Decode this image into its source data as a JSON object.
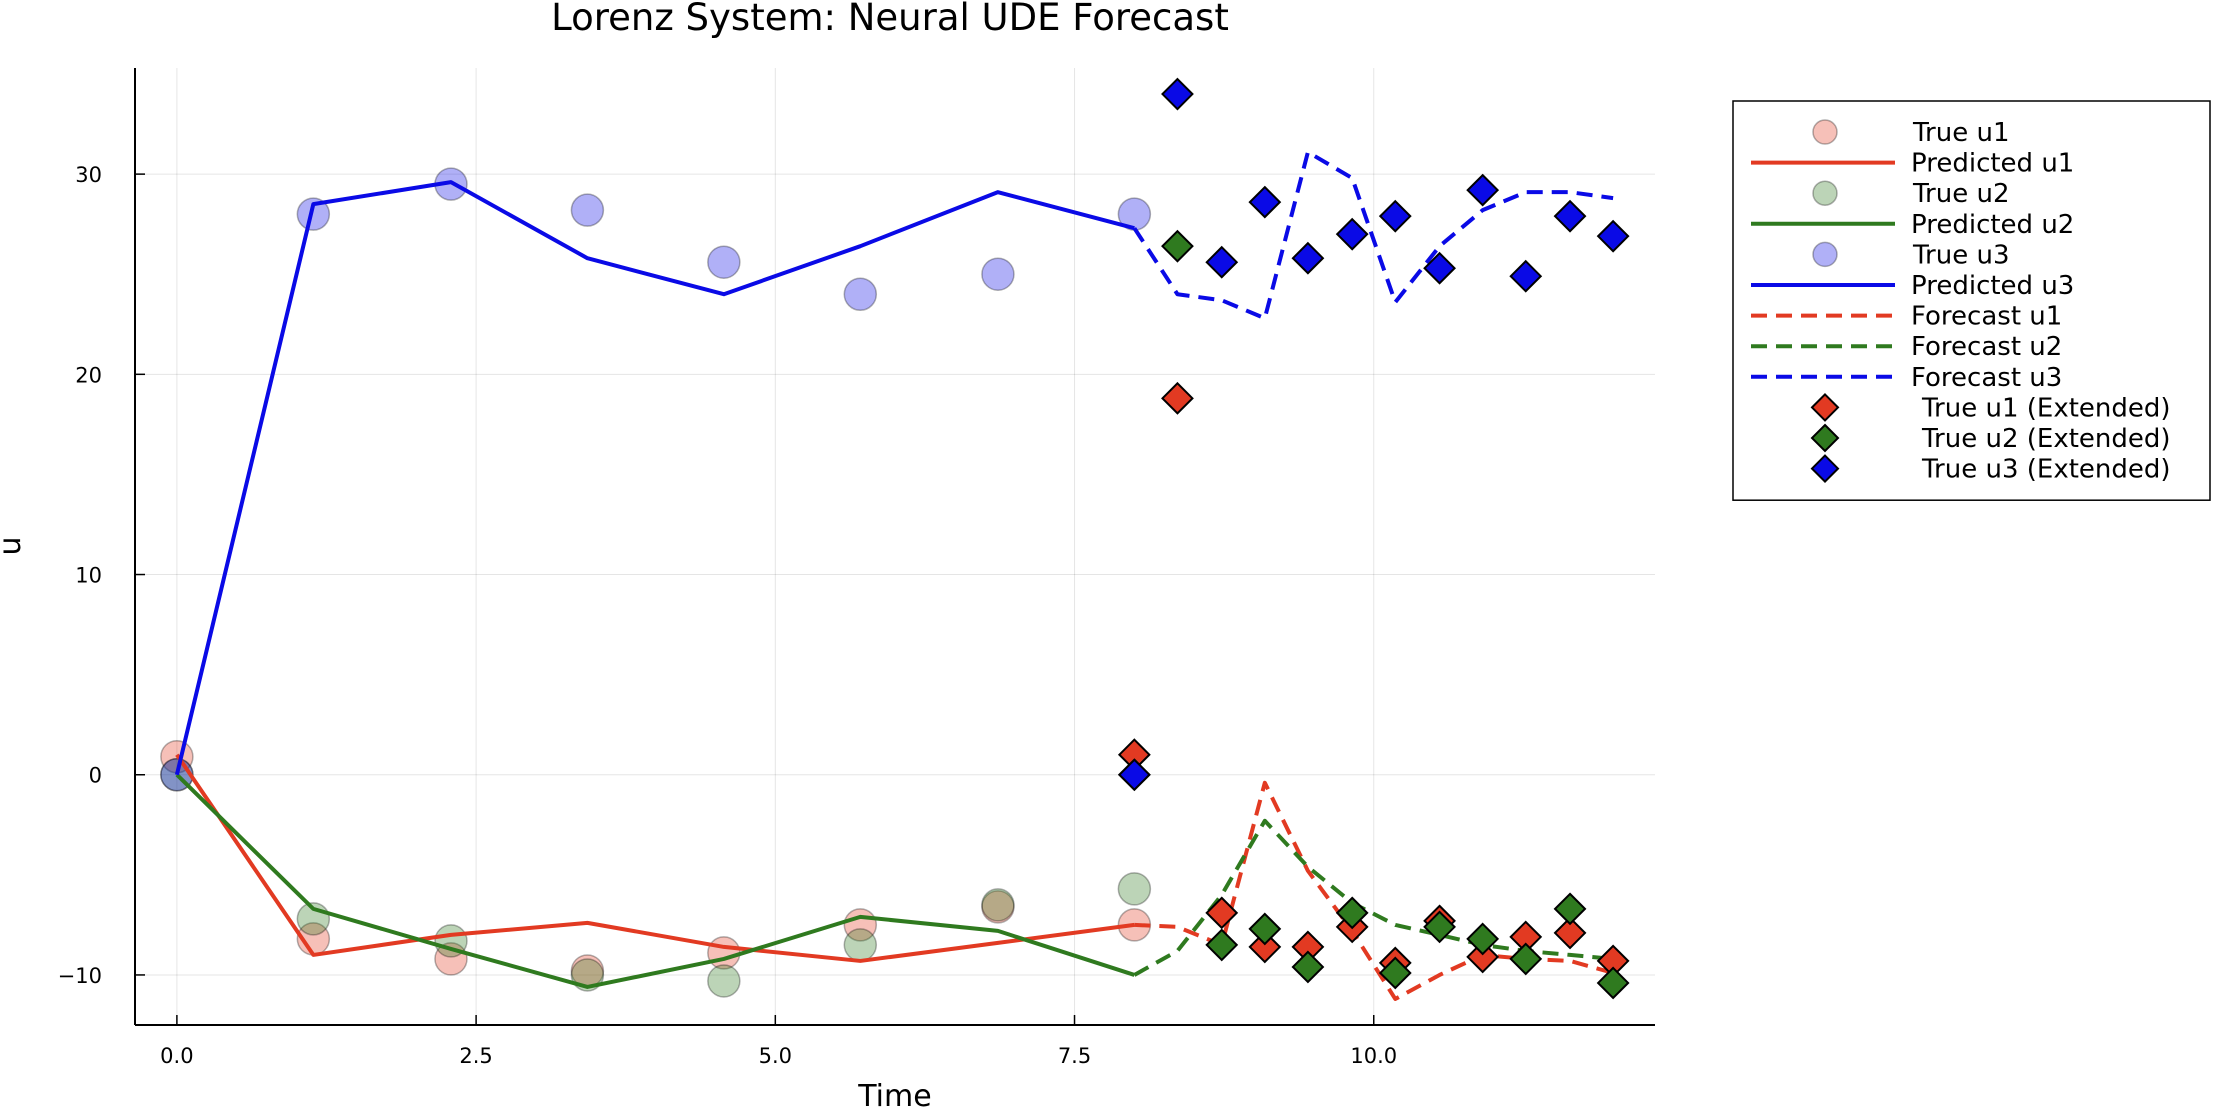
{
  "chart_data": {
    "type": "line+scatter",
    "title": "Lorenz System: Neural UDE Forecast",
    "xlabel": "Time",
    "ylabel": "u",
    "xlim": [
      -0.35,
      12.35
    ],
    "ylim": [
      -12.5,
      35.3
    ],
    "xticks": [
      0.0,
      2.5,
      5.0,
      7.5,
      10.0
    ],
    "xtick_labels": [
      "0.0",
      "2.5",
      "5.0",
      "7.5",
      "10.0"
    ],
    "yticks": [
      -10,
      0,
      10,
      20,
      30
    ],
    "ytick_labels": [
      "−10",
      "0",
      "10",
      "20",
      "30"
    ],
    "grid": true,
    "legend_position": "outer top-right",
    "colors": {
      "red": "#e23a22",
      "green": "#2f7a1f",
      "blue": "#0a0ae6"
    },
    "series": [
      {
        "name": "True u1",
        "kind": "scatter-circle",
        "color": "#e23a22",
        "x": [
          0,
          1.14,
          2.29,
          3.43,
          4.57,
          5.71,
          6.86,
          8.0
        ],
        "y": [
          0.9,
          -8.2,
          -9.2,
          -9.8,
          -8.9,
          -7.5,
          -6.6,
          -7.5
        ]
      },
      {
        "name": "Predicted u1",
        "kind": "line",
        "color": "#e23a22",
        "x": [
          0,
          1.14,
          2.29,
          3.43,
          4.57,
          5.71,
          6.86,
          8.0
        ],
        "y": [
          1.0,
          -9.0,
          -8.0,
          -7.4,
          -8.6,
          -9.3,
          -8.4,
          -7.5
        ]
      },
      {
        "name": "True u2",
        "kind": "scatter-circle",
        "color": "#2f7a1f",
        "x": [
          0,
          1.14,
          2.29,
          3.43,
          4.57,
          5.71,
          6.86,
          8.0
        ],
        "y": [
          0.0,
          -7.2,
          -8.3,
          -10.0,
          -10.3,
          -8.5,
          -6.5,
          -5.7
        ]
      },
      {
        "name": "Predicted u2",
        "kind": "line",
        "color": "#2f7a1f",
        "x": [
          0,
          1.14,
          2.29,
          3.43,
          4.57,
          5.71,
          6.86,
          8.0
        ],
        "y": [
          0.0,
          -6.7,
          -8.7,
          -10.6,
          -9.2,
          -7.1,
          -7.8,
          -10.0
        ]
      },
      {
        "name": "True u3",
        "kind": "scatter-circle",
        "color": "#0a0ae6",
        "x": [
          0,
          1.14,
          2.29,
          3.43,
          4.57,
          5.71,
          6.86,
          8.0
        ],
        "y": [
          0.0,
          28.0,
          29.5,
          28.2,
          25.6,
          24.0,
          25.0,
          28.0
        ]
      },
      {
        "name": "Predicted u3",
        "kind": "line",
        "color": "#0a0ae6",
        "x": [
          0,
          1.14,
          2.29,
          3.43,
          4.57,
          5.71,
          6.86,
          8.0
        ],
        "y": [
          0.0,
          28.5,
          29.6,
          25.8,
          24.0,
          26.4,
          29.1,
          27.3
        ]
      },
      {
        "name": "Forecast u1",
        "kind": "dashed-line",
        "color": "#e23a22",
        "x": [
          8.0,
          8.36,
          8.73,
          9.09,
          9.45,
          9.82,
          10.18,
          10.55,
          10.91,
          11.27,
          11.64,
          12.0
        ],
        "y": [
          -7.5,
          -7.6,
          -8.5,
          -0.4,
          -4.8,
          -7.8,
          -11.2,
          -10.0,
          -9.0,
          -9.2,
          -9.3,
          -9.9
        ]
      },
      {
        "name": "Forecast u2",
        "kind": "dashed-line",
        "color": "#2f7a1f",
        "x": [
          8.0,
          8.36,
          8.73,
          9.09,
          9.45,
          9.82,
          10.18,
          10.55,
          10.91,
          11.27,
          11.64,
          12.0
        ],
        "y": [
          -10.0,
          -8.8,
          -6.0,
          -2.3,
          -4.6,
          -6.4,
          -7.5,
          -8.0,
          -8.5,
          -8.8,
          -9.0,
          -9.2
        ]
      },
      {
        "name": "Forecast u3",
        "kind": "dashed-line",
        "color": "#0a0ae6",
        "x": [
          8.0,
          8.36,
          8.73,
          9.09,
          9.45,
          9.82,
          10.18,
          10.55,
          10.91,
          11.27,
          11.64,
          12.0
        ],
        "y": [
          27.3,
          24.0,
          23.7,
          22.8,
          31.1,
          29.8,
          23.6,
          26.4,
          28.2,
          29.1,
          29.1,
          28.8
        ]
      },
      {
        "name": "True u1 (Extended)",
        "kind": "scatter-diamond",
        "color": "#e23a22",
        "x": [
          8.0,
          8.36,
          8.73,
          9.09,
          9.45,
          9.82,
          10.18,
          10.55,
          10.91,
          11.27,
          11.64,
          12.0
        ],
        "y": [
          1.0,
          18.8,
          -6.9,
          -8.6,
          -8.6,
          -7.6,
          -9.4,
          -7.3,
          -9.1,
          -8.1,
          -7.9,
          -9.3
        ]
      },
      {
        "name": "True u2 (Extended)",
        "kind": "scatter-diamond",
        "color": "#2f7a1f",
        "x": [
          8.0,
          8.36,
          8.73,
          9.09,
          9.45,
          9.82,
          10.18,
          10.55,
          10.91,
          11.27,
          11.64,
          12.0
        ],
        "y": [
          0.0,
          26.4,
          -8.5,
          -7.7,
          -9.6,
          -6.9,
          -9.9,
          -7.6,
          -8.2,
          -9.2,
          -6.7,
          -10.4
        ]
      },
      {
        "name": "True u3 (Extended)",
        "kind": "scatter-diamond",
        "color": "#0a0ae6",
        "x": [
          8.0,
          8.36,
          8.73,
          9.09,
          9.45,
          9.82,
          10.18,
          10.55,
          10.91,
          11.27,
          11.64,
          12.0
        ],
        "y": [
          0.0,
          34.0,
          25.6,
          28.6,
          25.8,
          27.0,
          27.9,
          25.3,
          29.2,
          24.9,
          27.9,
          26.9
        ]
      }
    ]
  }
}
